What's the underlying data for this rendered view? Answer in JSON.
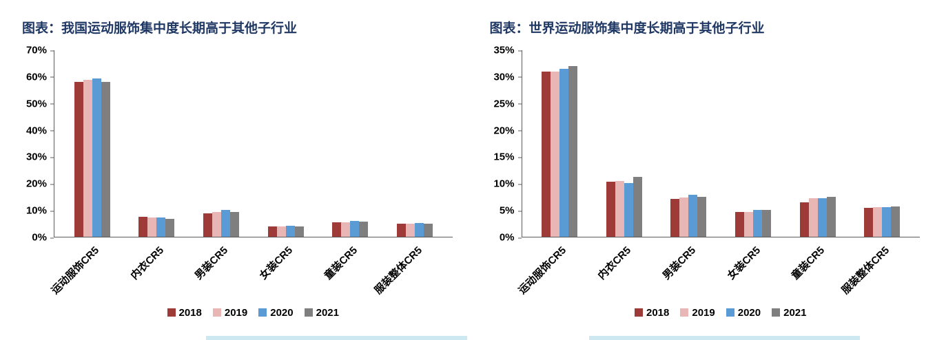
{
  "chart_data": [
    {
      "type": "bar",
      "title": "图表：我国运动服饰集中度长期高于其他子行业",
      "title_color": "#1F3864",
      "categories": [
        "运动服饰CR5",
        "内衣CR5",
        "男装CR5",
        "女装CR5",
        "童装CR5",
        "服装整体CR5"
      ],
      "series": [
        {
          "name": "2018",
          "color": "#9E3B39",
          "values": [
            58.0,
            7.5,
            8.8,
            4.0,
            5.5,
            4.8
          ]
        },
        {
          "name": "2019",
          "color": "#E8B7B5",
          "values": [
            58.8,
            7.2,
            9.4,
            3.9,
            5.3,
            5.0
          ]
        },
        {
          "name": "2020",
          "color": "#5B9BD5",
          "values": [
            59.3,
            7.3,
            10.0,
            4.2,
            5.9,
            5.2
          ]
        },
        {
          "name": "2021",
          "color": "#7F7F7F",
          "values": [
            58.2,
            6.8,
            9.2,
            4.0,
            5.8,
            4.9
          ]
        }
      ],
      "xlabel": "",
      "ylabel": "",
      "ylim": [
        0,
        70
      ],
      "ytick": 10,
      "ytick_suffix": "%",
      "grid": false,
      "legend_position": "bottom"
    },
    {
      "type": "bar",
      "title": "图表：世界运动服饰集中度长期高于其他子行业",
      "title_color": "#1F3864",
      "categories": [
        "运动服饰CR5",
        "内衣CR5",
        "男装CR5",
        "女装CR5",
        "童装CR5",
        "服装整体CR5"
      ],
      "series": [
        {
          "name": "2018",
          "color": "#9E3B39",
          "values": [
            31.0,
            10.3,
            7.1,
            4.7,
            6.5,
            5.4
          ]
        },
        {
          "name": "2019",
          "color": "#E8B7B5",
          "values": [
            31.0,
            10.4,
            7.3,
            4.6,
            7.2,
            5.6
          ]
        },
        {
          "name": "2020",
          "color": "#5B9BD5",
          "values": [
            31.5,
            10.1,
            7.9,
            5.0,
            7.2,
            5.6
          ]
        },
        {
          "name": "2021",
          "color": "#7F7F7F",
          "values": [
            32.0,
            11.2,
            7.5,
            5.1,
            7.5,
            5.7
          ]
        }
      ],
      "xlabel": "",
      "ylabel": "",
      "ylim": [
        0,
        35
      ],
      "ytick": 5,
      "ytick_suffix": "%",
      "grid": false,
      "legend_position": "bottom"
    }
  ]
}
